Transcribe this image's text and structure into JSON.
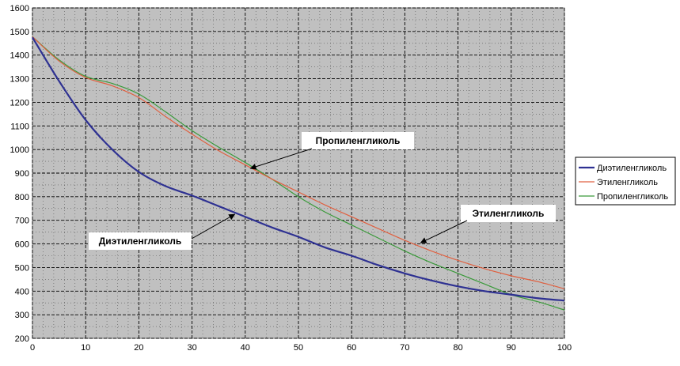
{
  "chart_data": {
    "type": "line",
    "title": "",
    "xlabel": "",
    "ylabel": "",
    "xlim": [
      0,
      100
    ],
    "ylim": [
      200,
      1600
    ],
    "x_ticks": [
      0,
      10,
      20,
      30,
      40,
      50,
      60,
      70,
      80,
      90,
      100
    ],
    "y_ticks": [
      200,
      300,
      400,
      500,
      600,
      700,
      800,
      900,
      1000,
      1100,
      1200,
      1300,
      1400,
      1500,
      1600
    ],
    "grid": true,
    "legend_position": "right",
    "series": [
      {
        "name": "Диэтиленгликоль",
        "color": "#2e3192",
        "x": [
          0,
          5,
          10,
          15,
          20,
          25,
          30,
          35,
          40,
          45,
          50,
          55,
          60,
          65,
          70,
          75,
          80,
          85,
          90,
          95,
          100
        ],
        "y": [
          1475,
          1290,
          1125,
          1000,
          905,
          845,
          805,
          760,
          715,
          670,
          630,
          585,
          550,
          510,
          475,
          445,
          420,
          400,
          385,
          370,
          360
        ]
      },
      {
        "name": "Этиленгликоль",
        "color": "#e06040",
        "x": [
          0,
          5,
          10,
          15,
          20,
          25,
          30,
          35,
          40,
          45,
          50,
          55,
          60,
          65,
          70,
          75,
          80,
          85,
          90,
          95,
          100
        ],
        "y": [
          1478,
          1375,
          1305,
          1270,
          1220,
          1140,
          1065,
          995,
          935,
          875,
          820,
          765,
          715,
          665,
          615,
          570,
          530,
          495,
          465,
          440,
          410
        ]
      },
      {
        "name": "Пропиленгликоль",
        "color": "#3a9a3a",
        "x": [
          0,
          5,
          10,
          15,
          20,
          25,
          30,
          35,
          40,
          45,
          50,
          55,
          60,
          65,
          70,
          75,
          80,
          85,
          90,
          95,
          100
        ],
        "y": [
          1478,
          1380,
          1310,
          1280,
          1235,
          1160,
          1080,
          1010,
          945,
          875,
          800,
          735,
          680,
          625,
          570,
          520,
          475,
          430,
          385,
          355,
          320
        ]
      }
    ],
    "annotations": [
      {
        "label": "Пропиленгликоль",
        "point": [
          41,
          920
        ]
      },
      {
        "label": "Этиленгликоль",
        "point": [
          73,
          605
        ]
      },
      {
        "label": "Диэтиленгликоль",
        "point": [
          38,
          725
        ]
      }
    ]
  }
}
